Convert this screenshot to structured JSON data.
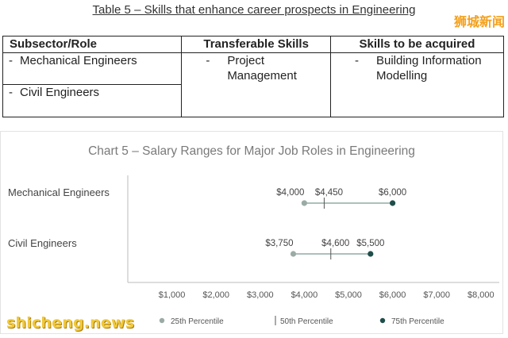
{
  "table": {
    "title": "Table 5 – Skills that enhance career prospects in Engineering",
    "headers": [
      "Subsector/Role",
      "Transferable Skills",
      "Skills to be acquired"
    ],
    "roles": [
      "Mechanical Engineers",
      "Civil Engineers"
    ],
    "transferable_skill": "Project Management",
    "skill_to_acquire": "Building Information Modelling",
    "dash": "-"
  },
  "watermark": {
    "chinese": "狮城新闻",
    "english": "shicheng.news"
  },
  "chart_data": {
    "type": "range",
    "title": "Chart 5 – Salary Ranges for Major Job Roles in Engineering",
    "categories": [
      "Mechanical Engineers",
      "Civil Engineers"
    ],
    "series": [
      {
        "name": "25th Percentile",
        "values": [
          4000,
          3750
        ],
        "labels": [
          "$4,000",
          "$3,750"
        ],
        "color": "#9aaba5"
      },
      {
        "name": "50th Percentile",
        "values": [
          4450,
          4600
        ],
        "labels": [
          "$4,450",
          "$4,600"
        ],
        "color": "#555555"
      },
      {
        "name": "75th Percentile",
        "values": [
          6000,
          5500
        ],
        "labels": [
          "$6,000",
          "$5,500"
        ],
        "color": "#1f4e4a"
      }
    ],
    "x_ticks": [
      "$1,000",
      "$2,000",
      "$3,000",
      "$4,000",
      "$5,000",
      "$6,000",
      "$7,000",
      "$8,000"
    ],
    "xlim": [
      0,
      8000
    ],
    "grid": false,
    "legend_position": "bottom",
    "line_color": "#7a9a92"
  }
}
